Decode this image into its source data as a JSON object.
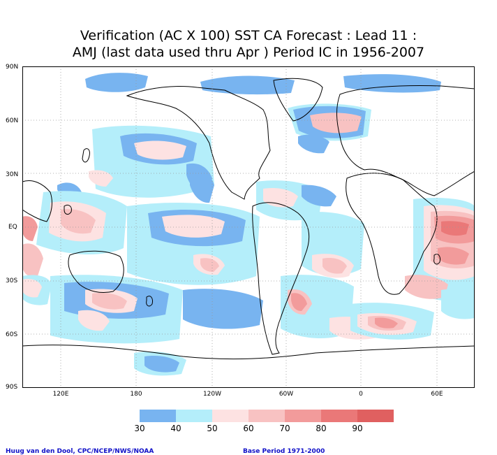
{
  "title_line1": "Verification (AC X 100) SST CA Forecast : Lead 11 :",
  "title_line2": "AMJ (last data used thru Apr ) Period IC in 1956-2007",
  "lat_labels": [
    "90N",
    "60N",
    "30N",
    "EQ",
    "30S",
    "60S",
    "90S"
  ],
  "lon_labels": [
    "120E",
    "180",
    "120W",
    "60W",
    "0",
    "60E"
  ],
  "legend": {
    "levels": [
      "30",
      "40",
      "50",
      "60",
      "70",
      "80",
      "90"
    ],
    "colors": [
      "#78b4f0",
      "#b4eefa",
      "#fde2e2",
      "#f8c2c2",
      "#f29b9b",
      "#ea7878",
      "#e06060"
    ]
  },
  "credit_left": "Huug van den Dool, CPC/NCEP/NWS/NOAA",
  "credit_right": "Base Period 1971-2000"
}
